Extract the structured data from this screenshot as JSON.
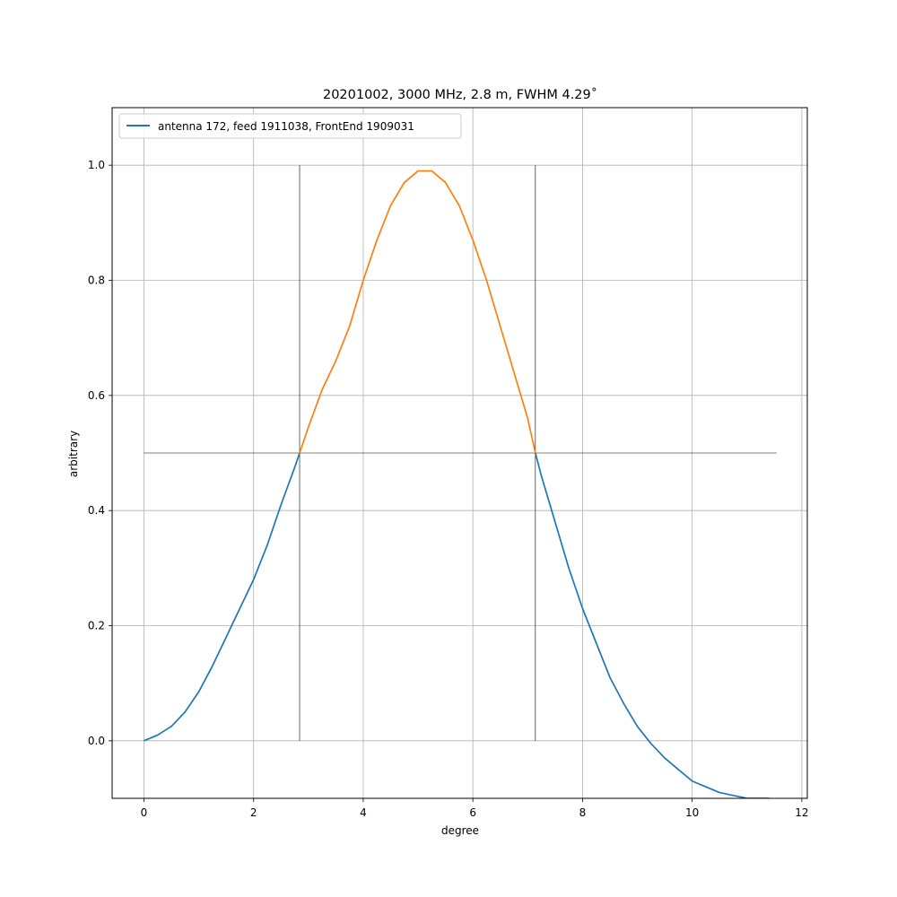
{
  "chart_data": {
    "type": "line",
    "title": "20201002, 3000 MHz, 2.8 m, FWHM 4.29$^\\circ$",
    "title_display": "20201002, 3000 MHz, 2.8 m, FWHM 4.29˚",
    "xlabel": "degree",
    "ylabel": "arbitrary",
    "xlim": [
      -0.58,
      12.1
    ],
    "ylim": [
      -0.1,
      1.1
    ],
    "xticks": [
      0,
      2,
      4,
      6,
      8,
      10,
      12
    ],
    "xtick_labels": [
      "0",
      "2",
      "4",
      "6",
      "8",
      "10",
      "12"
    ],
    "yticks": [
      0.0,
      0.2,
      0.4,
      0.6,
      0.8,
      1.0
    ],
    "ytick_labels": [
      "0.0",
      "0.2",
      "0.4",
      "0.6",
      "0.8",
      "1.0"
    ],
    "grid": true,
    "legend": {
      "position": "top-left",
      "entries": [
        "antenna 172, feed 1911038, FrontEnd 1909031"
      ]
    },
    "colors": {
      "beam": "#1f77b4",
      "fwhm_region": "#ff7f0e",
      "guides": "#000000",
      "grid": "#b0b0b0"
    },
    "series": [
      {
        "name": "antenna 172, feed 1911038, FrontEnd 1909031",
        "color": "#1f77b4",
        "x": [
          0.0,
          0.25,
          0.5,
          0.75,
          1.0,
          1.25,
          1.5,
          1.75,
          2.0,
          2.25,
          2.5,
          2.75,
          2.84
        ],
        "y": [
          0.0,
          0.01,
          0.025,
          0.05,
          0.085,
          0.13,
          0.18,
          0.23,
          0.28,
          0.34,
          0.41,
          0.475,
          0.5
        ]
      },
      {
        "name": "",
        "color": "#ff7f0e",
        "x": [
          2.84,
          3.0,
          3.25,
          3.5,
          3.75,
          4.0,
          4.25,
          4.5,
          4.75,
          5.0,
          5.25,
          5.5,
          5.75,
          6.0,
          6.25,
          6.5,
          6.75,
          7.0,
          7.14
        ],
        "y": [
          0.5,
          0.545,
          0.61,
          0.66,
          0.72,
          0.8,
          0.87,
          0.93,
          0.97,
          0.99,
          0.99,
          0.97,
          0.93,
          0.87,
          0.8,
          0.72,
          0.64,
          0.56,
          0.5
        ]
      },
      {
        "name": "",
        "color": "#1f77b4",
        "x": [
          7.14,
          7.25,
          7.5,
          7.75,
          8.0,
          8.25,
          8.5,
          8.75,
          9.0,
          9.25,
          9.5,
          9.75,
          10.0,
          10.25,
          10.5,
          10.75,
          11.0,
          11.25,
          11.4
        ],
        "y": [
          0.5,
          0.46,
          0.38,
          0.3,
          0.23,
          0.17,
          0.11,
          0.065,
          0.025,
          -0.005,
          -0.03,
          -0.05,
          -0.07,
          -0.08,
          -0.09,
          -0.095,
          -0.1,
          -0.1,
          -0.1
        ]
      }
    ],
    "guides": {
      "hline": {
        "y": 0.5,
        "xmin": 0.0,
        "xmax": 11.54
      },
      "vlines": [
        {
          "x": 2.84,
          "ymin": 0.0,
          "ymax": 1.0
        },
        {
          "x": 7.14,
          "ymin": 0.0,
          "ymax": 1.0
        }
      ]
    }
  }
}
